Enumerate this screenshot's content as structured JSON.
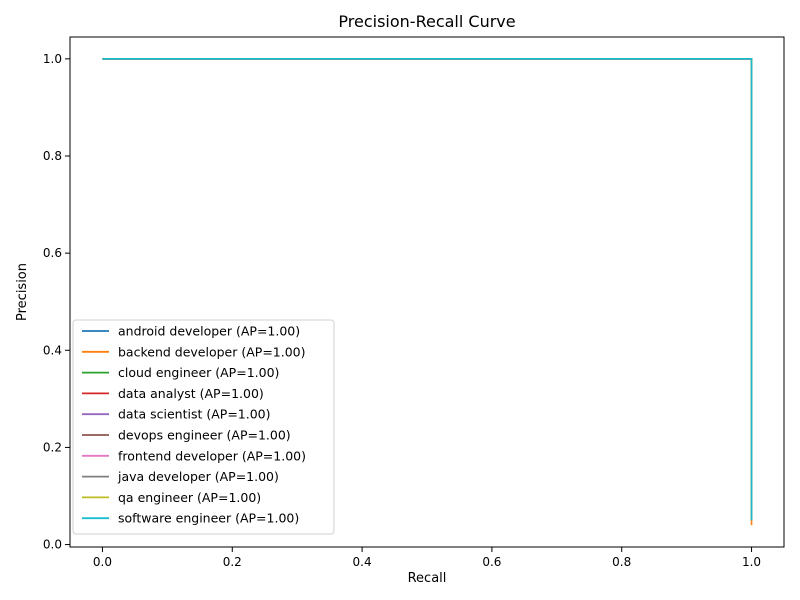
{
  "chart_data": {
    "type": "line",
    "title": "Precision-Recall Curve",
    "xlabel": "Recall",
    "ylabel": "Precision",
    "xlim": [
      -0.05,
      1.05
    ],
    "ylim": [
      -0.005,
      1.045
    ],
    "xticks": [
      {
        "value": 0.0,
        "label": "0.0"
      },
      {
        "value": 0.2,
        "label": "0.2"
      },
      {
        "value": 0.4,
        "label": "0.4"
      },
      {
        "value": 0.6,
        "label": "0.6"
      },
      {
        "value": 0.8,
        "label": "0.8"
      },
      {
        "value": 1.0,
        "label": "1.0"
      }
    ],
    "yticks": [
      {
        "value": 0.0,
        "label": "0.0"
      },
      {
        "value": 0.2,
        "label": "0.2"
      },
      {
        "value": 0.4,
        "label": "0.4"
      },
      {
        "value": 0.6,
        "label": "0.6"
      },
      {
        "value": 0.8,
        "label": "0.8"
      },
      {
        "value": 1.0,
        "label": "1.0"
      }
    ],
    "grid": false,
    "legend_position": "lower-left",
    "series": [
      {
        "name": "android developer (AP=1.00)",
        "color": "#1f77b4",
        "x": [
          0,
          1,
          1
        ],
        "y": [
          1,
          1,
          0.05
        ]
      },
      {
        "name": "backend developer (AP=1.00)",
        "color": "#ff7f0e",
        "x": [
          0,
          1,
          1
        ],
        "y": [
          1,
          1,
          0.04
        ]
      },
      {
        "name": "cloud engineer (AP=1.00)",
        "color": "#2ca02c",
        "x": [
          0,
          1,
          1
        ],
        "y": [
          1,
          1,
          0.05
        ]
      },
      {
        "name": "data analyst (AP=1.00)",
        "color": "#d62728",
        "x": [
          0,
          1,
          1
        ],
        "y": [
          1,
          1,
          0.05
        ]
      },
      {
        "name": "data scientist (AP=1.00)",
        "color": "#9467bd",
        "x": [
          0,
          1,
          1
        ],
        "y": [
          1,
          1,
          0.05
        ]
      },
      {
        "name": "devops engineer (AP=1.00)",
        "color": "#8c564b",
        "x": [
          0,
          1,
          1
        ],
        "y": [
          1,
          1,
          0.05
        ]
      },
      {
        "name": "frontend developer (AP=1.00)",
        "color": "#e377c2",
        "x": [
          0,
          1,
          1
        ],
        "y": [
          1,
          1,
          0.05
        ]
      },
      {
        "name": "java developer (AP=1.00)",
        "color": "#7f7f7f",
        "x": [
          0,
          1,
          1
        ],
        "y": [
          1,
          1,
          0.05
        ]
      },
      {
        "name": "qa engineer (AP=1.00)",
        "color": "#bcbd22",
        "x": [
          0,
          1,
          1
        ],
        "y": [
          1,
          1,
          0.05
        ]
      },
      {
        "name": "software engineer (AP=1.00)",
        "color": "#17becf",
        "x": [
          0,
          1,
          1
        ],
        "y": [
          1,
          1,
          0.05
        ]
      }
    ]
  }
}
